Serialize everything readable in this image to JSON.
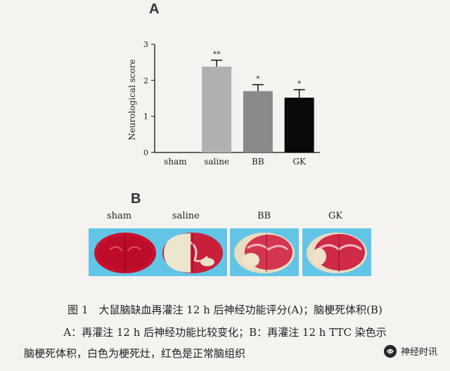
{
  "panel_a_label": "A",
  "panel_b_label": "B",
  "chart_data": {
    "type": "bar",
    "categories": [
      "sham",
      "saline",
      "BB",
      "GK"
    ],
    "values": [
      0,
      2.38,
      1.7,
      1.52
    ],
    "errors": [
      0,
      0.18,
      0.18,
      0.22
    ],
    "significance": [
      "",
      "**",
      "*",
      "*"
    ],
    "bar_colors": [
      "#b0b0b0",
      "#b0b0b0",
      "#8a8a8a",
      "#0a0a0a"
    ],
    "ylabel": "Neurological score",
    "xlabel": "",
    "ylim": [
      0,
      3
    ],
    "yticks": [
      0,
      1,
      2,
      3
    ]
  },
  "brain_panel": {
    "labels": [
      "sham",
      "saline",
      "BB",
      "GK"
    ]
  },
  "caption": {
    "line1": "图 1　大鼠脑缺血再灌注 12 h 后神经功能评分(A)；脑梗死体积(B)",
    "line2": "A：再灌注 12 h 后神经功能比较变化；B：再灌注 12 h TTC 染色示",
    "line3": "脑梗死体积，白色为梗死灶，红色是正常脑组织"
  },
  "watermark": {
    "text": "神经时讯"
  }
}
